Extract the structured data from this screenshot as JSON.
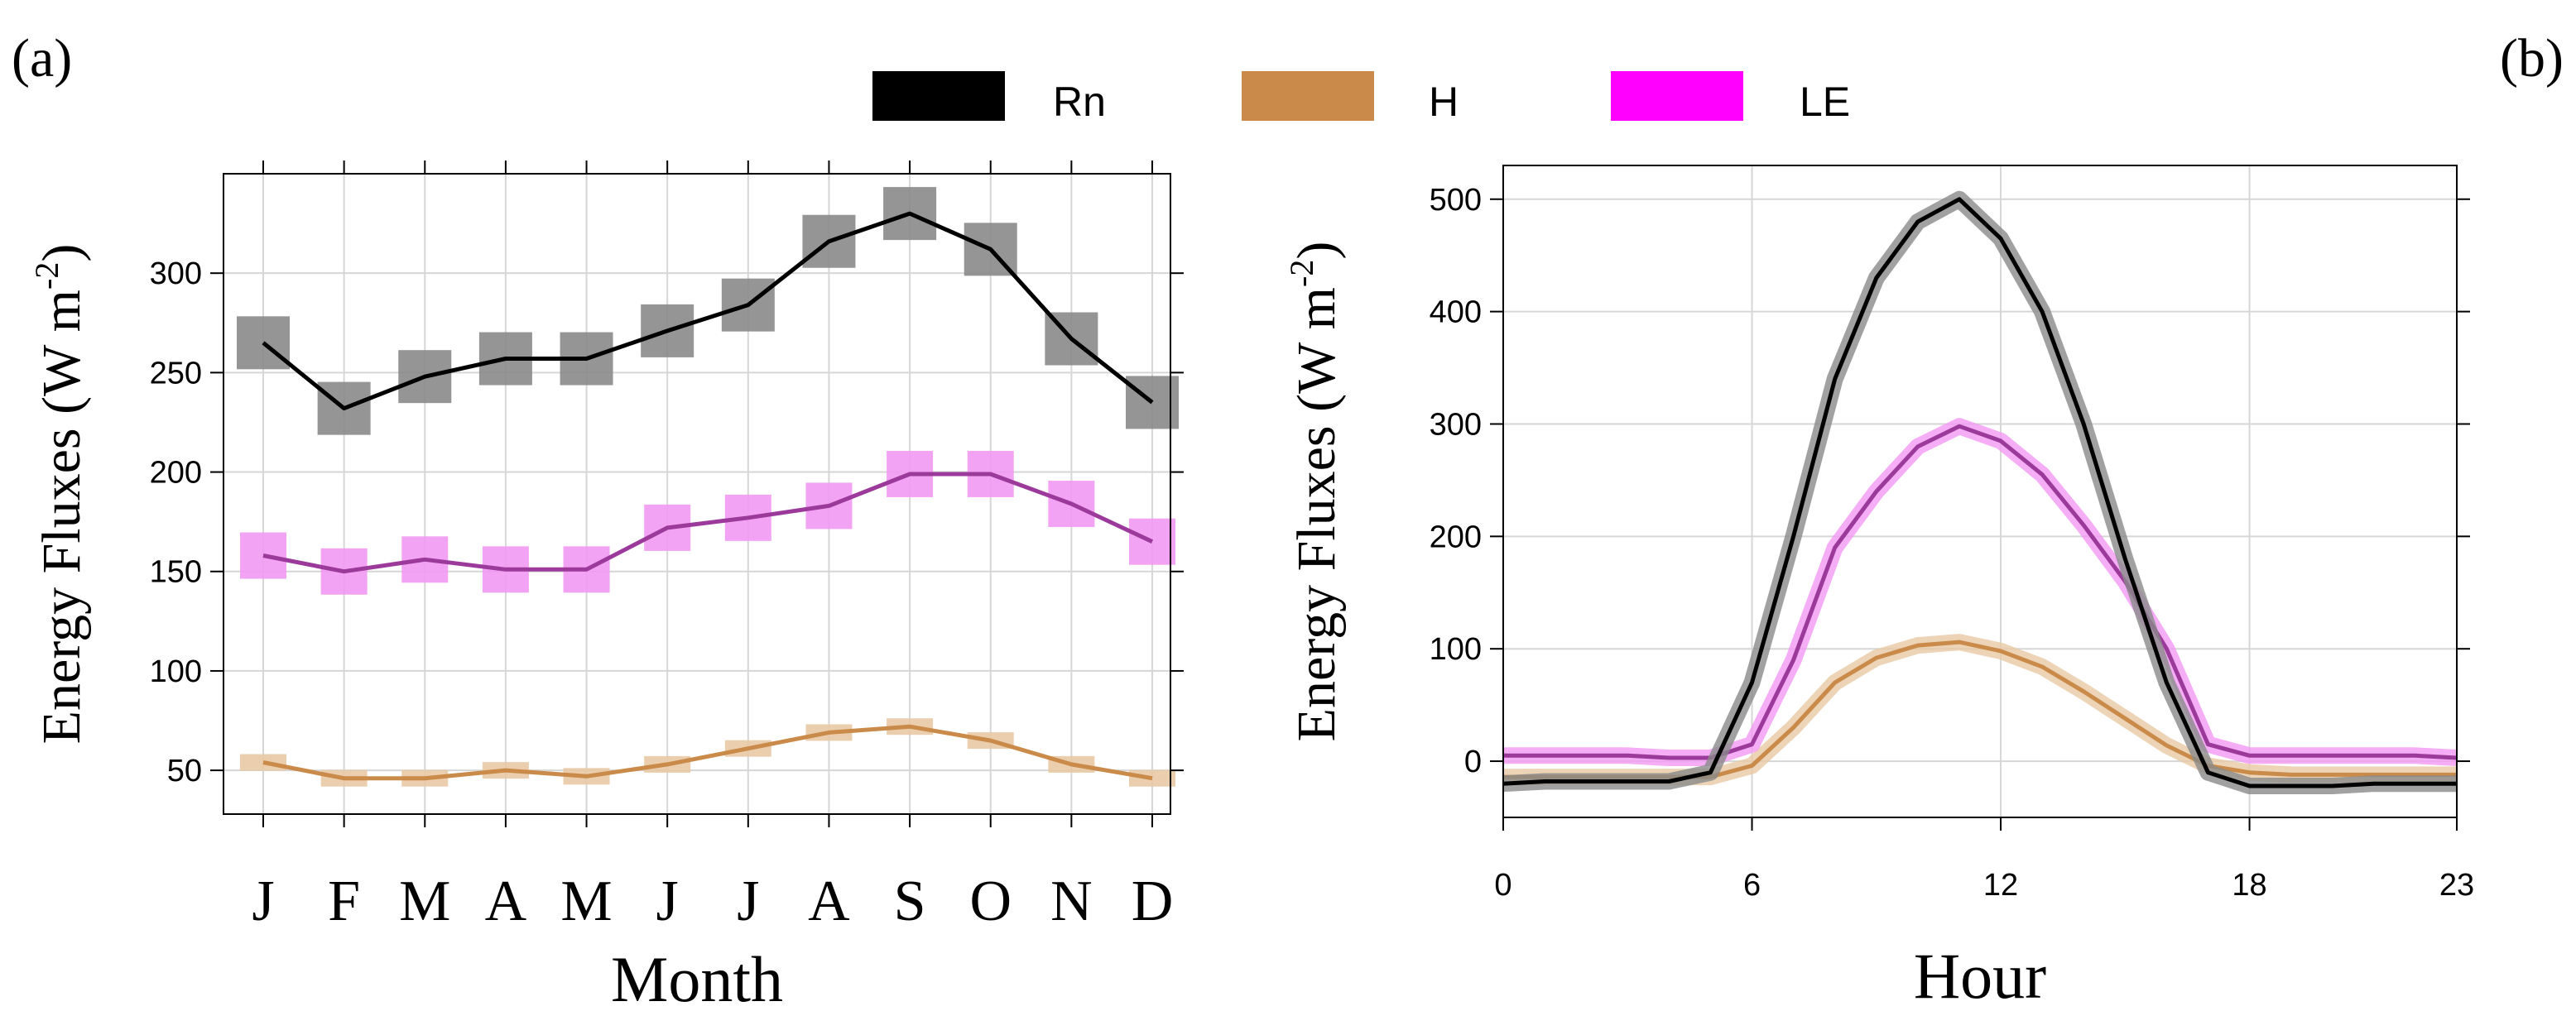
{
  "figure": {
    "panel_a_label": "(a)",
    "panel_b_label": "(b)"
  },
  "legend": [
    {
      "name": "Rn",
      "color": "#000000"
    },
    {
      "name": "H",
      "color": "#c98a4a"
    },
    {
      "name": "LE",
      "color": "#ff00ff"
    }
  ],
  "chart_data": [
    {
      "type": "line",
      "panel": "(a)",
      "title": "",
      "xlabel": "Month",
      "ylabel": "Energy Fluxes (W m-2)",
      "ylabel_main": "Energy Fluxes (W m",
      "ylabel_sup": "-2",
      "ylabel_close": ")",
      "categories": [
        "J",
        "F",
        "M",
        "A",
        "M",
        "J",
        "J",
        "A",
        "S",
        "O",
        "N",
        "D"
      ],
      "ylim": [
        28,
        350
      ],
      "yticks": [
        50,
        100,
        150,
        200,
        250,
        300
      ],
      "grid": true,
      "series": [
        {
          "name": "Rn",
          "color": "#000000",
          "band_color": "#8a8a8a",
          "values": [
            265,
            232,
            248,
            257,
            257,
            271,
            284,
            316,
            330,
            312,
            267,
            235
          ]
        },
        {
          "name": "H",
          "color": "#c98a4a",
          "band_color": "#e8c9a4",
          "values": [
            54,
            46,
            46,
            50,
            47,
            53,
            61,
            69,
            72,
            65,
            53,
            46
          ]
        },
        {
          "name": "LE",
          "color": "#9b3a9b",
          "band_color": "#f299f2",
          "values": [
            158,
            150,
            156,
            151,
            151,
            172,
            177,
            183,
            199,
            199,
            184,
            165
          ]
        }
      ]
    },
    {
      "type": "line",
      "panel": "(b)",
      "title": "",
      "xlabel": "Hour",
      "ylabel": "Energy Fluxes (W m-2)",
      "ylabel_main": "Energy Fluxes (W m",
      "ylabel_sup": "-2",
      "ylabel_close": ")",
      "x": [
        0,
        1,
        2,
        3,
        4,
        5,
        6,
        7,
        8,
        9,
        10,
        11,
        12,
        13,
        14,
        15,
        16,
        17,
        18,
        19,
        20,
        21,
        22,
        23
      ],
      "xlim": [
        0,
        23
      ],
      "xticks": [
        0,
        6,
        12,
        18,
        23
      ],
      "ylim": [
        -50,
        530
      ],
      "yticks": [
        0,
        100,
        200,
        300,
        400,
        500
      ],
      "grid": true,
      "series": [
        {
          "name": "Rn",
          "color": "#000000",
          "band_color": "#8a8a8a",
          "values": [
            -20,
            -18,
            -18,
            -18,
            -18,
            -10,
            70,
            200,
            340,
            430,
            480,
            500,
            465,
            400,
            300,
            180,
            70,
            -10,
            -22,
            -22,
            -22,
            -20,
            -20,
            -20
          ]
        },
        {
          "name": "H",
          "color": "#c98a4a",
          "band_color": "#e8c9a4",
          "values": [
            -14,
            -14,
            -14,
            -14,
            -14,
            -14,
            -4,
            30,
            70,
            92,
            103,
            106,
            98,
            84,
            62,
            38,
            14,
            -4,
            -10,
            -12,
            -12,
            -12,
            -12,
            -12
          ]
        },
        {
          "name": "LE",
          "color": "#9b3a9b",
          "band_color": "#f299f2",
          "values": [
            5,
            5,
            5,
            5,
            3,
            3,
            15,
            90,
            190,
            240,
            280,
            298,
            285,
            255,
            210,
            160,
            100,
            15,
            5,
            5,
            5,
            5,
            5,
            3
          ]
        }
      ]
    }
  ]
}
